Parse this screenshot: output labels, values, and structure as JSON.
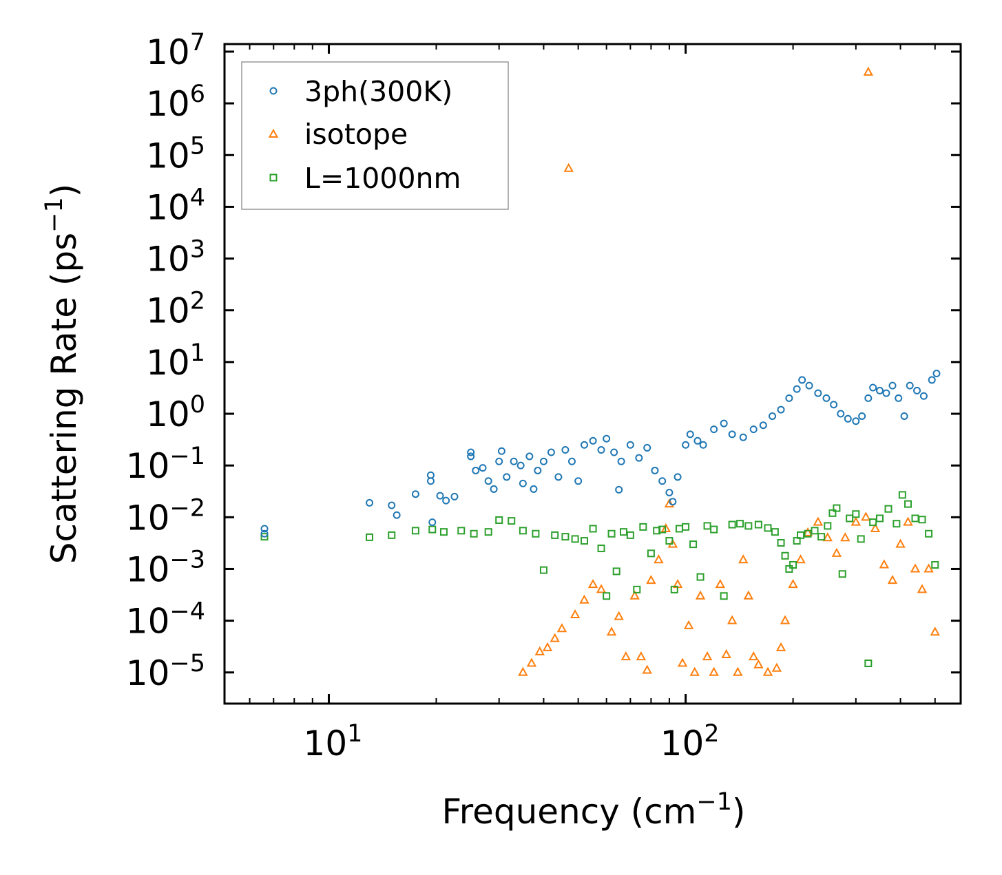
{
  "chart_data": {
    "type": "scatter",
    "xscale": "log",
    "yscale": "log",
    "xlim": [
      5.1,
      590
    ],
    "ylim": [
      2.5e-06,
      14000000.0
    ],
    "xlabel": "Frequency (cm",
    "xlabel_sup": "−1",
    "xlabel_tail": ")",
    "ylabel": "Scattering Rate (ps",
    "ylabel_sup": "−1",
    "ylabel_tail": ")",
    "xticks": [
      {
        "value": 10,
        "base": "10",
        "exp": "1"
      },
      {
        "value": 100,
        "base": "10",
        "exp": "2"
      }
    ],
    "yticks": [
      {
        "value": 1e-05,
        "base": "10",
        "exp": "−5"
      },
      {
        "value": 0.0001,
        "base": "10",
        "exp": "−4"
      },
      {
        "value": 0.001,
        "base": "10",
        "exp": "−3"
      },
      {
        "value": 0.01,
        "base": "10",
        "exp": "−2"
      },
      {
        "value": 0.1,
        "base": "10",
        "exp": "−1"
      },
      {
        "value": 1,
        "base": "10",
        "exp": "0"
      },
      {
        "value": 10,
        "base": "10",
        "exp": "1"
      },
      {
        "value": 100,
        "base": "10",
        "exp": "2"
      },
      {
        "value": 1000,
        "base": "10",
        "exp": "3"
      },
      {
        "value": 10000,
        "base": "10",
        "exp": "4"
      },
      {
        "value": 100000,
        "base": "10",
        "exp": "5"
      },
      {
        "value": 1000000,
        "base": "10",
        "exp": "6"
      },
      {
        "value": 10000000,
        "base": "10",
        "exp": "7"
      }
    ],
    "legend_position": "top-left",
    "series": [
      {
        "name": "3ph(300K)",
        "marker": "circle",
        "color": "#1f77b4",
        "points": [
          [
            6.6,
            0.006
          ],
          [
            6.6,
            0.0048
          ],
          [
            13.0,
            0.019
          ],
          [
            15.0,
            0.017
          ],
          [
            15.5,
            0.011
          ],
          [
            17.5,
            0.028
          ],
          [
            19.3,
            0.065
          ],
          [
            19.3,
            0.05
          ],
          [
            19.5,
            0.008
          ],
          [
            20.5,
            0.026
          ],
          [
            21.3,
            0.021
          ],
          [
            22.5,
            0.025
          ],
          [
            25.0,
            0.18
          ],
          [
            25.0,
            0.15
          ],
          [
            25.8,
            0.08
          ],
          [
            27.0,
            0.09
          ],
          [
            28.0,
            0.05
          ],
          [
            29.0,
            0.035
          ],
          [
            30.0,
            0.12
          ],
          [
            30.5,
            0.19
          ],
          [
            31.5,
            0.06
          ],
          [
            33.0,
            0.12
          ],
          [
            34.5,
            0.1
          ],
          [
            35.0,
            0.045
          ],
          [
            36.5,
            0.15
          ],
          [
            37.5,
            0.035
          ],
          [
            38.5,
            0.08
          ],
          [
            40.0,
            0.12
          ],
          [
            42.0,
            0.18
          ],
          [
            44.0,
            0.06
          ],
          [
            46.0,
            0.2
          ],
          [
            48.0,
            0.12
          ],
          [
            50.0,
            0.05
          ],
          [
            52.0,
            0.25
          ],
          [
            55.0,
            0.3
          ],
          [
            58.0,
            0.2
          ],
          [
            60.0,
            0.33
          ],
          [
            63.0,
            0.18
          ],
          [
            65.0,
            0.034
          ],
          [
            66.0,
            0.12
          ],
          [
            70.0,
            0.25
          ],
          [
            74.0,
            0.14
          ],
          [
            78.0,
            0.22
          ],
          [
            82.0,
            0.08
          ],
          [
            86.0,
            0.05
          ],
          [
            90.0,
            0.03
          ],
          [
            92.0,
            0.02
          ],
          [
            95.0,
            0.06
          ],
          [
            100.0,
            0.25
          ],
          [
            103.0,
            0.4
          ],
          [
            108.0,
            0.3
          ],
          [
            112.0,
            0.25
          ],
          [
            120.0,
            0.5
          ],
          [
            128.0,
            0.65
          ],
          [
            135.0,
            0.4
          ],
          [
            145.0,
            0.35
          ],
          [
            155.0,
            0.5
          ],
          [
            165.0,
            0.6
          ],
          [
            175.0,
            0.9
          ],
          [
            185.0,
            1.2
          ],
          [
            195.0,
            2.0
          ],
          [
            205.0,
            3.0
          ],
          [
            212.0,
            4.5
          ],
          [
            222.0,
            3.5
          ],
          [
            235.0,
            2.5
          ],
          [
            248.0,
            2.0
          ],
          [
            260.0,
            1.5
          ],
          [
            272.0,
            1.0
          ],
          [
            285.0,
            0.8
          ],
          [
            300.0,
            0.72
          ],
          [
            312.0,
            0.9
          ],
          [
            325.0,
            2.0
          ],
          [
            335.0,
            3.2
          ],
          [
            350.0,
            2.8
          ],
          [
            365.0,
            2.5
          ],
          [
            380.0,
            3.5
          ],
          [
            395.0,
            2.0
          ],
          [
            410.0,
            0.9
          ],
          [
            425.0,
            3.5
          ],
          [
            445.0,
            2.8
          ],
          [
            465.0,
            2.2
          ],
          [
            490.0,
            4.5
          ],
          [
            505.0,
            6.0
          ]
        ]
      },
      {
        "name": "isotope",
        "marker": "triangle",
        "color": "#ff7f0e",
        "points": [
          [
            35.0,
            1e-05
          ],
          [
            37.0,
            1.5e-05
          ],
          [
            39.0,
            2.5e-05
          ],
          [
            41.0,
            3e-05
          ],
          [
            43.0,
            4.5e-05
          ],
          [
            45.0,
            7e-05
          ],
          [
            47.0,
            55000
          ],
          [
            49.0,
            0.00013
          ],
          [
            52.0,
            0.00025
          ],
          [
            55.0,
            0.0005
          ],
          [
            58.0,
            0.0004
          ],
          [
            62.0,
            6e-05
          ],
          [
            65.0,
            0.00012
          ],
          [
            68.0,
            2e-05
          ],
          [
            72.0,
            0.0003
          ],
          [
            75.0,
            2e-05
          ],
          [
            78.0,
            1.1e-05
          ],
          [
            80.0,
            0.0006
          ],
          [
            84.0,
            0.0015
          ],
          [
            88.0,
            0.006
          ],
          [
            90.0,
            0.018
          ],
          [
            92.0,
            0.003
          ],
          [
            95.0,
            0.0005
          ],
          [
            98.0,
            1.5e-05
          ],
          [
            102.0,
            8e-05
          ],
          [
            106.0,
            1e-05
          ],
          [
            110.0,
            0.0003
          ],
          [
            115.0,
            2e-05
          ],
          [
            120.0,
            1e-05
          ],
          [
            125.0,
            0.0005
          ],
          [
            130.0,
            2.2e-05
          ],
          [
            135.0,
            0.0001
          ],
          [
            140.0,
            1e-05
          ],
          [
            145.0,
            0.0015
          ],
          [
            150.0,
            0.0003
          ],
          [
            155.0,
            2e-05
          ],
          [
            160.0,
            1.4e-05
          ],
          [
            170.0,
            1e-05
          ],
          [
            180.0,
            1.2e-05
          ],
          [
            185.0,
            3e-05
          ],
          [
            190.0,
            0.0001
          ],
          [
            200.0,
            0.0005
          ],
          [
            210.0,
            0.0015
          ],
          [
            220.0,
            0.005
          ],
          [
            235.0,
            0.008
          ],
          [
            250.0,
            0.004
          ],
          [
            265.0,
            0.002
          ],
          [
            280.0,
            0.004
          ],
          [
            300.0,
            0.008
          ],
          [
            320.0,
            0.01
          ],
          [
            325.0,
            4000000
          ],
          [
            340.0,
            0.006
          ],
          [
            360.0,
            0.0012
          ],
          [
            380.0,
            0.0006
          ],
          [
            400.0,
            0.003
          ],
          [
            420.0,
            0.008
          ],
          [
            440.0,
            0.001
          ],
          [
            460.0,
            0.0004
          ],
          [
            480.0,
            0.001
          ],
          [
            500.0,
            6e-05
          ]
        ]
      },
      {
        "name": "L=1000nm",
        "marker": "square",
        "color": "#2ca02c",
        "points": [
          [
            6.6,
            0.0042
          ],
          [
            13.0,
            0.0041
          ],
          [
            15.0,
            0.0045
          ],
          [
            17.5,
            0.0055
          ],
          [
            19.5,
            0.0058
          ],
          [
            21.0,
            0.0052
          ],
          [
            23.5,
            0.0055
          ],
          [
            25.5,
            0.0048
          ],
          [
            28.0,
            0.0052
          ],
          [
            30.0,
            0.0088
          ],
          [
            32.5,
            0.0085
          ],
          [
            35.0,
            0.0055
          ],
          [
            38.0,
            0.0048
          ],
          [
            40.0,
            0.00095
          ],
          [
            43.0,
            0.0045
          ],
          [
            46.0,
            0.0042
          ],
          [
            49.0,
            0.0038
          ],
          [
            52.0,
            0.0035
          ],
          [
            55.0,
            0.006
          ],
          [
            58.0,
            0.0025
          ],
          [
            60.0,
            0.0003
          ],
          [
            62.0,
            0.0048
          ],
          [
            64.0,
            0.0009
          ],
          [
            67.0,
            0.0052
          ],
          [
            70.0,
            0.0045
          ],
          [
            73.0,
            0.0004
          ],
          [
            76.0,
            0.0065
          ],
          [
            80.0,
            0.002
          ],
          [
            83.0,
            0.0055
          ],
          [
            86.0,
            0.0058
          ],
          [
            90.0,
            0.0035
          ],
          [
            93.0,
            0.0004
          ],
          [
            96.0,
            0.006
          ],
          [
            100.0,
            0.0065
          ],
          [
            105.0,
            0.003
          ],
          [
            110.0,
            0.0007
          ],
          [
            115.0,
            0.0068
          ],
          [
            120.0,
            0.0058
          ],
          [
            128.0,
            0.0003
          ],
          [
            135.0,
            0.0072
          ],
          [
            142.0,
            0.0075
          ],
          [
            150.0,
            0.0068
          ],
          [
            160.0,
            0.0072
          ],
          [
            170.0,
            0.0062
          ],
          [
            178.0,
            0.0052
          ],
          [
            185.0,
            0.0032
          ],
          [
            190.0,
            0.0018
          ],
          [
            195.0,
            0.001
          ],
          [
            200.0,
            0.0012
          ],
          [
            205.0,
            0.0035
          ],
          [
            210.0,
            0.0045
          ],
          [
            220.0,
            0.0048
          ],
          [
            230.0,
            0.0055
          ],
          [
            240.0,
            0.0042
          ],
          [
            250.0,
            0.0068
          ],
          [
            258.0,
            0.012
          ],
          [
            265.0,
            0.015
          ],
          [
            275.0,
            0.0008
          ],
          [
            288.0,
            0.0095
          ],
          [
            300.0,
            0.0115
          ],
          [
            310.0,
            0.0038
          ],
          [
            325.0,
            1.5e-05
          ],
          [
            335.0,
            0.008
          ],
          [
            350.0,
            0.0095
          ],
          [
            370.0,
            0.0145
          ],
          [
            390.0,
            0.0075
          ],
          [
            405.0,
            0.027
          ],
          [
            420.0,
            0.018
          ],
          [
            440.0,
            0.0095
          ],
          [
            460.0,
            0.009
          ],
          [
            480.0,
            0.0048
          ],
          [
            500.0,
            0.0012
          ]
        ]
      }
    ]
  }
}
